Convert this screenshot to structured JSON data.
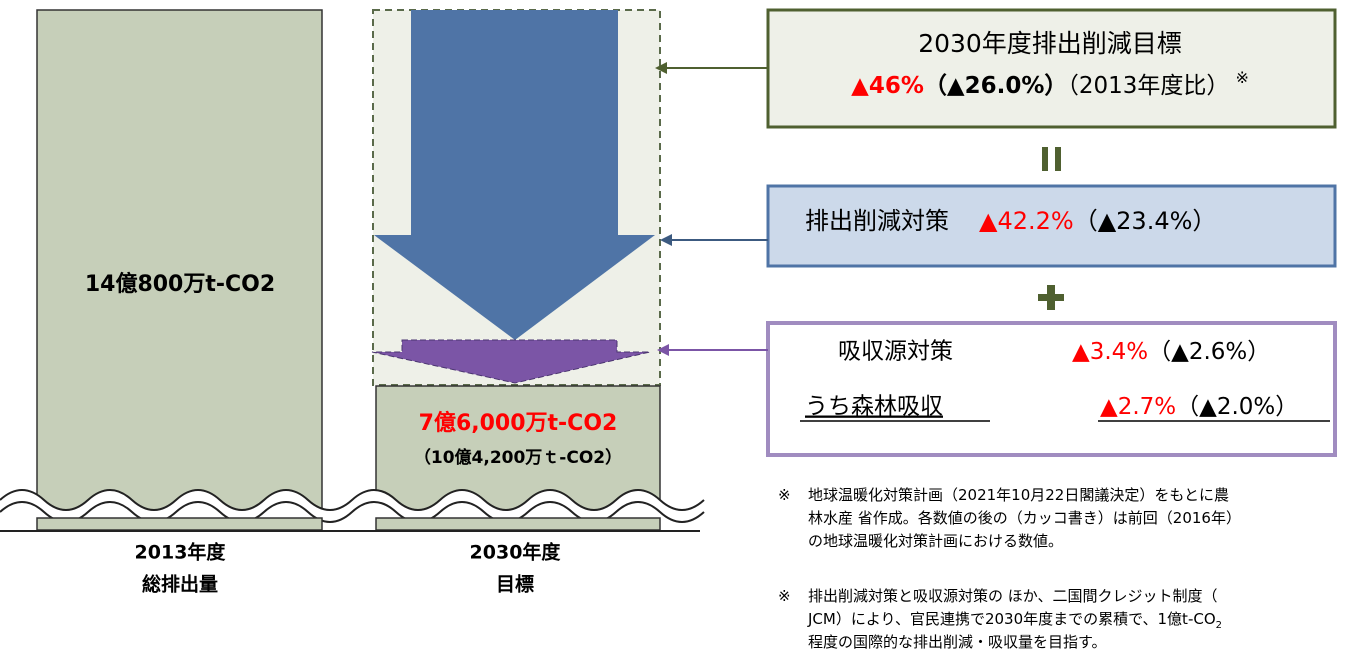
{
  "left_bar": {
    "label": "14億800万t-CO2",
    "caption": [
      "2013年度",
      "総排出量"
    ]
  },
  "right_bar": {
    "label": "7億6,000万t-CO2",
    "sublabel": "（10億4,200万ｔ-CO2）",
    "caption": [
      "2030年度",
      "目標"
    ]
  },
  "target_box": {
    "title": "2030年度排出削減目標",
    "value": "▲46%",
    "previous": "（▲26.0%）",
    "basis": "（2013年度比）",
    "mark": "※"
  },
  "reduction_box": {
    "label": "排出削減対策",
    "value": "▲42.2%",
    "previous": "（▲23.4%）"
  },
  "absorption_box": {
    "label": "吸収源対策",
    "value": "▲3.4%",
    "previous": "（▲2.6%）",
    "sub_label": "うち森林吸収",
    "sub_value": "▲2.7%",
    "sub_previous": "（▲2.0%）"
  },
  "notes": [
    {
      "mark": "※",
      "lines": [
        "地球温暖化対策計画（2021年10月22日閣議決定）をもとに農",
        "林水産 省作成。各数値の後の（カッコ書き）は前回（2016年）",
        "の地球温暖化対策計画における数値。"
      ]
    },
    {
      "mark": "※",
      "lines": [
        "排出削減対策と吸収源対策の ほか、二国間クレジット制度（",
        "JCM）により、官民連携で2030年度までの累積で、1億t-CO",
        "程度の国際的な排出削減・吸収量を目指す。"
      ],
      "subscript": "2"
    }
  ]
}
